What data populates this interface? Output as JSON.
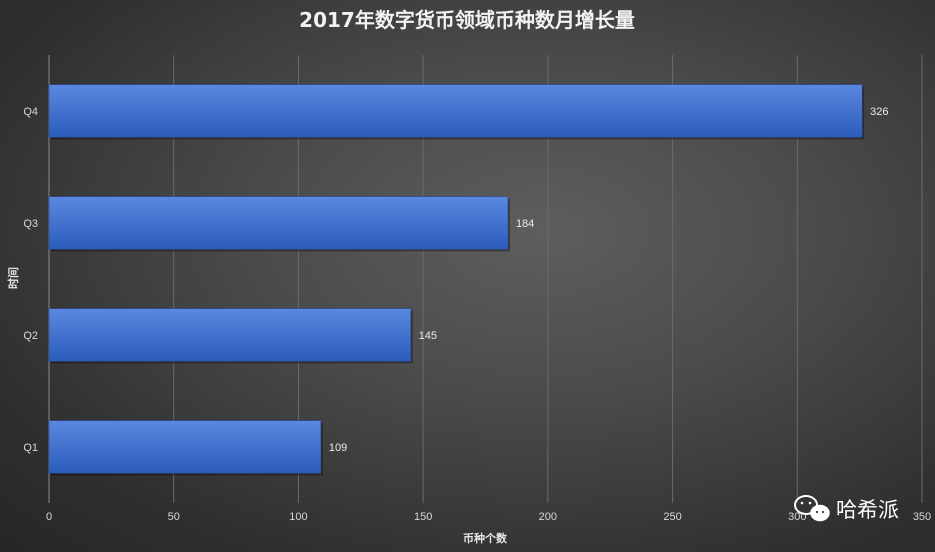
{
  "chart_data": {
    "type": "bar",
    "orientation": "horizontal",
    "title": "2017年数字货币领域币种数月增长量",
    "xlabel": "币种个数",
    "ylabel": "时间",
    "categories": [
      "Q1",
      "Q2",
      "Q3",
      "Q4"
    ],
    "values": [
      109,
      145,
      184,
      326
    ],
    "xlim": [
      0,
      350
    ],
    "xticks": [
      "0",
      "50",
      "100",
      "150",
      "200",
      "250",
      "300",
      "350"
    ],
    "grid": true,
    "legend": "none",
    "bar_color": "#3b6fd0",
    "data_labels": [
      "109",
      "145",
      "184",
      "326"
    ]
  },
  "watermark": {
    "text": "哈希派",
    "icon": "wechat-icon"
  },
  "colors": {
    "bar_top": "#5b88e0",
    "bar_bottom": "#2c5cbc",
    "gridline": "#6a6a6a",
    "text": "#e8e8e8"
  }
}
